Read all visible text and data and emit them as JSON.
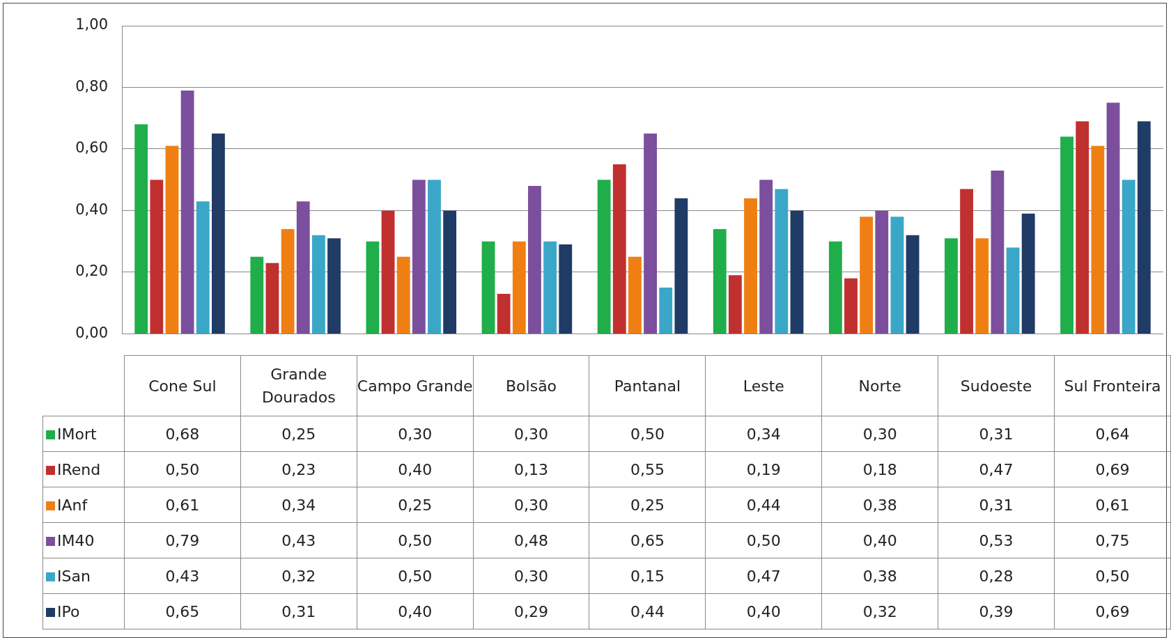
{
  "chart_data": {
    "type": "bar",
    "categories": [
      "Cone Sul",
      "Grande Dourados",
      "Campo Grande",
      "Bolsão",
      "Pantanal",
      "Leste",
      "Norte",
      "Sudoeste",
      "Sul Fronteira"
    ],
    "ylim": [
      0,
      1
    ],
    "yticks": [
      {
        "value": 0,
        "label": "0,00"
      },
      {
        "value": 0.2,
        "label": "0,20"
      },
      {
        "value": 0.4,
        "label": "0,40"
      },
      {
        "value": 0.6,
        "label": "0,60"
      },
      {
        "value": 0.8,
        "label": "0,80"
      },
      {
        "value": 1,
        "label": "1,00"
      }
    ],
    "grid": "y",
    "legend": "bottom left",
    "series": [
      {
        "name": "IMort",
        "color": "#1fae4a",
        "values": [
          0.68,
          0.25,
          0.3,
          0.3,
          0.5,
          0.34,
          0.3,
          0.31,
          0.64
        ],
        "value_labels": [
          "0,68",
          "0,25",
          "0,30",
          "0,30",
          "0,50",
          "0,34",
          "0,30",
          "0,31",
          "0,64"
        ]
      },
      {
        "name": "IRend",
        "color": "#c0302f",
        "values": [
          0.5,
          0.23,
          0.4,
          0.13,
          0.55,
          0.19,
          0.18,
          0.47,
          0.69
        ],
        "value_labels": [
          "0,50",
          "0,23",
          "0,40",
          "0,13",
          "0,55",
          "0,19",
          "0,18",
          "0,47",
          "0,69"
        ]
      },
      {
        "name": "IAnf",
        "color": "#f07f13",
        "values": [
          0.61,
          0.34,
          0.25,
          0.3,
          0.25,
          0.44,
          0.38,
          0.31,
          0.61
        ],
        "value_labels": [
          "0,61",
          "0,34",
          "0,25",
          "0,30",
          "0,25",
          "0,44",
          "0,38",
          "0,31",
          "0,61"
        ]
      },
      {
        "name": "IM40",
        "color": "#7b4f9d",
        "values": [
          0.79,
          0.43,
          0.5,
          0.48,
          0.65,
          0.5,
          0.4,
          0.53,
          0.75
        ],
        "value_labels": [
          "0,79",
          "0,43",
          "0,50",
          "0,48",
          "0,65",
          "0,50",
          "0,40",
          "0,53",
          "0,75"
        ]
      },
      {
        "name": "ISan",
        "color": "#3aa7c8",
        "values": [
          0.43,
          0.32,
          0.5,
          0.3,
          0.15,
          0.47,
          0.38,
          0.28,
          0.5
        ],
        "value_labels": [
          "0,43",
          "0,32",
          "0,50",
          "0,30",
          "0,15",
          "0,47",
          "0,38",
          "0,28",
          "0,50"
        ]
      },
      {
        "name": "IPo",
        "color": "#1f3b66",
        "values": [
          0.65,
          0.31,
          0.4,
          0.29,
          0.44,
          0.4,
          0.32,
          0.39,
          0.69
        ],
        "value_labels": [
          "0,65",
          "0,31",
          "0,40",
          "0,29",
          "0,44",
          "0,40",
          "0,32",
          "0,39",
          "0,69"
        ]
      }
    ]
  }
}
